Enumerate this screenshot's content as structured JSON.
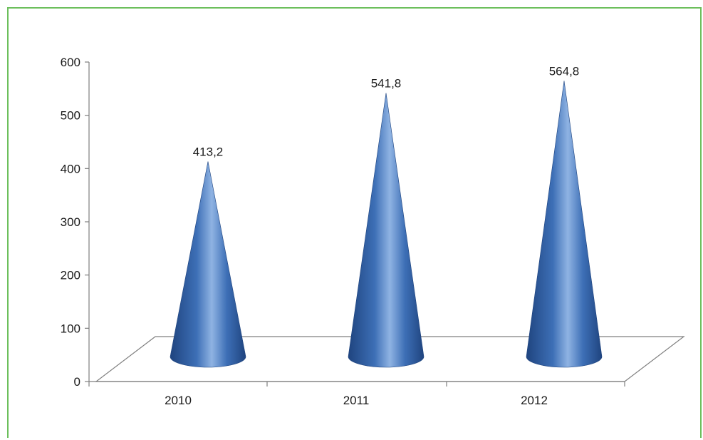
{
  "chart_data": {
    "type": "bar",
    "title": "",
    "categories": [
      "2010",
      "2011",
      "2012"
    ],
    "values": [
      413.2,
      541.8,
      564.8
    ],
    "value_labels": [
      "413,2",
      "541,8",
      "564,8"
    ],
    "y_ticks": [
      "0",
      "100",
      "200",
      "300",
      "400",
      "500",
      "600"
    ],
    "ylim": [
      0,
      600
    ],
    "xlabel": "",
    "ylabel": "",
    "grid": false,
    "legend": "none",
    "bar_shape": "cone",
    "colors": {
      "series": "#3d6fb6",
      "series_dark": "#1f447f",
      "series_light": "#8fb3e3",
      "frame": "#6cbf5c"
    }
  }
}
